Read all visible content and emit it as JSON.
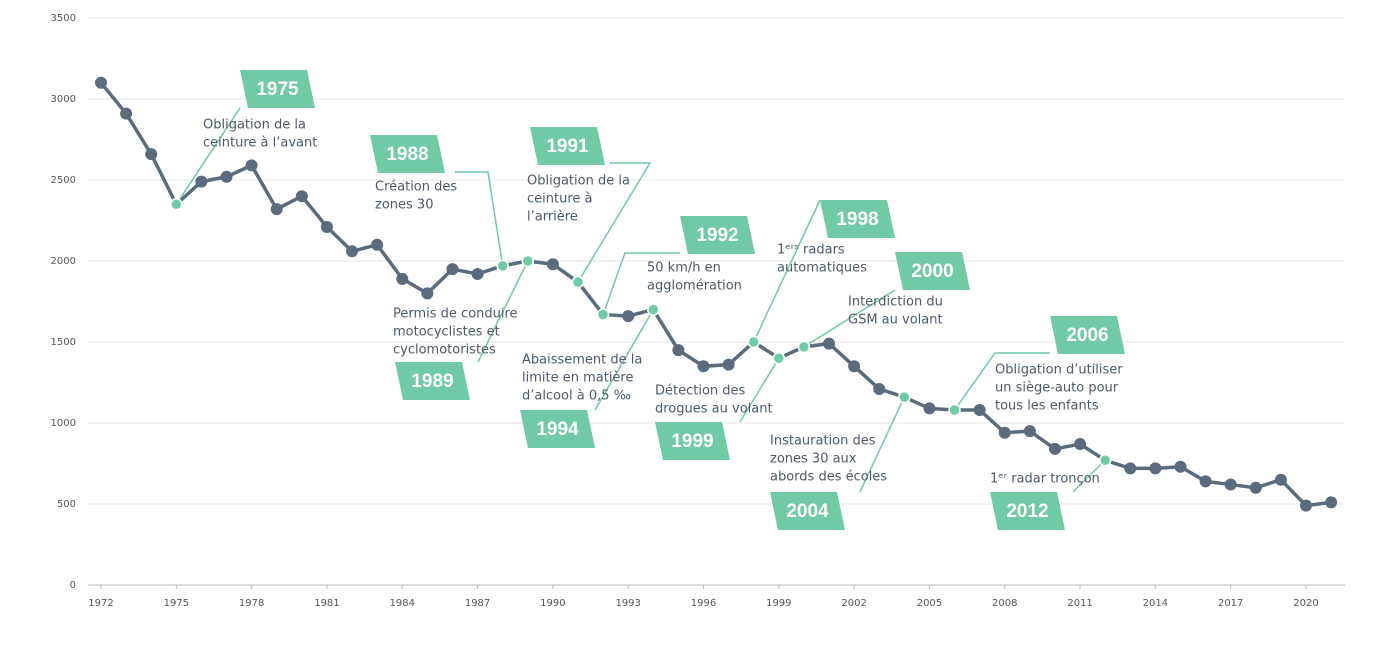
{
  "chart_data": {
    "type": "line",
    "x": [
      1972,
      1973,
      1974,
      1975,
      1976,
      1977,
      1978,
      1979,
      1980,
      1981,
      1982,
      1983,
      1984,
      1985,
      1986,
      1987,
      1988,
      1989,
      1990,
      1991,
      1992,
      1993,
      1994,
      1995,
      1996,
      1997,
      1998,
      1999,
      2000,
      2001,
      2002,
      2003,
      2004,
      2005,
      2006,
      2007,
      2008,
      2009,
      2010,
      2011,
      2012,
      2013,
      2014,
      2015,
      2016,
      2017,
      2018,
      2019,
      2020,
      2021
    ],
    "series": [
      {
        "color": "#5a6b7d",
        "highlight_color": "#6fcaa5",
        "values": [
          3100,
          2910,
          2660,
          2350,
          2490,
          2520,
          2590,
          2320,
          2400,
          2210,
          2060,
          2100,
          1890,
          1800,
          1950,
          1920,
          1970,
          2000,
          1980,
          1870,
          1670,
          1660,
          1700,
          1450,
          1350,
          1360,
          1500,
          1400,
          1470,
          1490,
          1350,
          1210,
          1160,
          1090,
          1080,
          1080,
          940,
          950,
          840,
          870,
          770,
          720,
          720,
          730,
          640,
          620,
          600,
          650,
          490,
          510
        ]
      }
    ],
    "xlim": [
      1971.5,
      2022
    ],
    "xticks": [
      1972,
      1975,
      1978,
      1981,
      1984,
      1987,
      1990,
      1993,
      1996,
      1999,
      2002,
      2005,
      2008,
      2011,
      2014,
      2017,
      2020
    ],
    "ylim": [
      0,
      3500
    ],
    "yticks": [
      0,
      500,
      1000,
      1500,
      2000,
      2500,
      3000,
      3500
    ],
    "grid": true,
    "annotations": [
      {
        "label": "1975",
        "text": [
          "Obligation de la",
          "ceinture à l’avant"
        ],
        "x": 1975
      },
      {
        "label": "1988",
        "text": [
          "Création des",
          "zones 30"
        ],
        "x": 1988
      },
      {
        "label": "1989",
        "text": [
          "Permis de conduire",
          "motocyclistes et",
          "cyclomotoristes"
        ],
        "x": 1989
      },
      {
        "label": "1991",
        "text": [
          "Obligation de la",
          "ceinture à",
          "l’arrière"
        ],
        "x": 1991
      },
      {
        "label": "1992",
        "text": [
          "50 km/h en",
          "agglomération"
        ],
        "x": 1992
      },
      {
        "label": "1994",
        "text": [
          "Abaissement de la",
          "limite en matière",
          "d’alcool à 0,5 ‰"
        ],
        "x": 1994
      },
      {
        "label": "1998",
        "text": [
          "1ᵉʳˢ radars",
          "automatiques"
        ],
        "x": 1998
      },
      {
        "label": "1999",
        "text": [
          "Détection des",
          "drogues au volant"
        ],
        "x": 1999
      },
      {
        "label": "2000",
        "text": [
          "Interdiction du",
          "GSM au volant"
        ],
        "x": 2000
      },
      {
        "label": "2004",
        "text": [
          "Instauration des",
          "zones 30 aux",
          "abords des écoles"
        ],
        "x": 2004
      },
      {
        "label": "2006",
        "text": [
          "Obligation d’utiliser",
          "un siège-auto pour",
          "tous les enfants"
        ],
        "x": 2006
      },
      {
        "label": "2012",
        "text": [
          "1ᵉʳ radar tronçon"
        ],
        "x": 2012
      }
    ]
  }
}
